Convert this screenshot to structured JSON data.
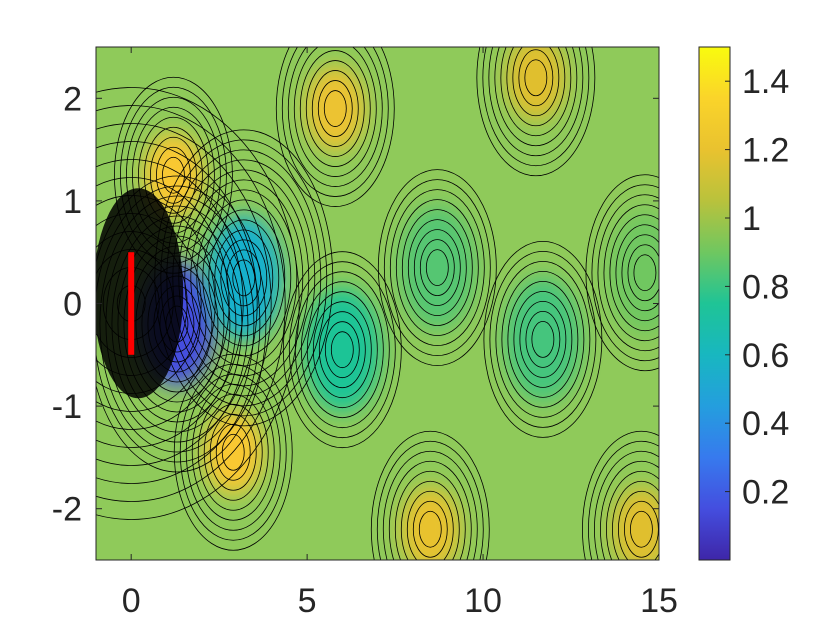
{
  "chart_data": {
    "type": "heatmap",
    "title": "",
    "xlabel": "",
    "ylabel": "",
    "xlim": [
      -1,
      15
    ],
    "ylim": [
      -2.5,
      2.5
    ],
    "x_ticks": [
      0,
      5,
      10,
      15
    ],
    "x_tick_labels": [
      "0",
      "5",
      "10",
      "15"
    ],
    "y_ticks": [
      -2,
      -1,
      0,
      1,
      2
    ],
    "y_tick_labels": [
      "-2",
      "-1",
      "0",
      "1",
      "2"
    ],
    "colorbar": {
      "colormap": "parula",
      "range": [
        0,
        1.5
      ],
      "ticks": [
        0.2,
        0.4,
        0.6,
        0.8,
        1.0,
        1.2,
        1.4
      ],
      "tick_labels": [
        "0.2",
        "0.4",
        "0.6",
        "0.8",
        "1",
        "1.2",
        "1.4"
      ]
    },
    "contour_lines": true,
    "grid": false,
    "plate": {
      "x": 0,
      "y_range": [
        -0.5,
        0.5
      ],
      "color": "#ff0000"
    },
    "field_features": [
      {
        "x": 1.3,
        "y": -0.2,
        "value": 0.15
      },
      {
        "x": 3.2,
        "y": 0.25,
        "value": 0.55
      },
      {
        "x": 6.0,
        "y": -0.45,
        "value": 0.75
      },
      {
        "x": 8.7,
        "y": 0.35,
        "value": 0.85
      },
      {
        "x": 11.7,
        "y": -0.35,
        "value": 0.82
      },
      {
        "x": 14.6,
        "y": 0.3,
        "value": 0.9
      },
      {
        "x": 1.2,
        "y": 1.25,
        "value": 1.3
      },
      {
        "x": 2.9,
        "y": -1.45,
        "value": 1.3
      },
      {
        "x": 5.8,
        "y": 1.9,
        "value": 1.22
      },
      {
        "x": 8.5,
        "y": -2.2,
        "value": 1.2
      },
      {
        "x": 11.5,
        "y": 2.2,
        "value": 1.15
      },
      {
        "x": 14.5,
        "y": -2.2,
        "value": 1.15
      }
    ]
  }
}
